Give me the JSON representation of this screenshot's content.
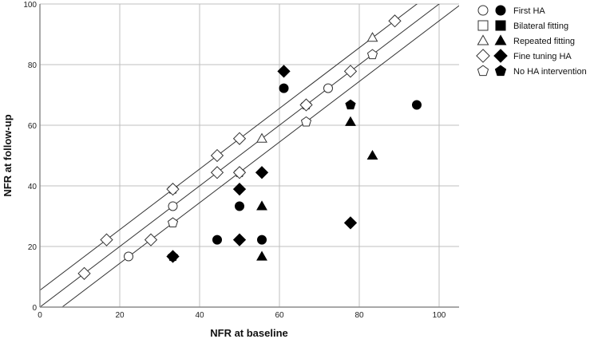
{
  "chart_data": {
    "type": "scatter",
    "title": "",
    "xlabel": "NFR at baseline",
    "ylabel": "NFR at follow-up",
    "xlim": [
      0,
      105
    ],
    "ylim": [
      0,
      100
    ],
    "xticks": [
      0,
      20,
      40,
      60,
      80,
      100
    ],
    "yticks": [
      0,
      20,
      40,
      60,
      80,
      100
    ],
    "grid": true,
    "legend_position": "top-right-outside",
    "reference_lines": [
      {
        "name": "upper-bound",
        "slope": 1,
        "intercept": 5.56
      },
      {
        "name": "identity",
        "slope": 1,
        "intercept": 0
      },
      {
        "name": "lower-bound",
        "slope": 1,
        "intercept": -5.56
      }
    ],
    "series": [
      {
        "name": "First HA",
        "marker": "circle",
        "filled": false,
        "points": [
          [
            22.2,
            16.7
          ],
          [
            33.3,
            33.3
          ],
          [
            72.2,
            72.2
          ]
        ]
      },
      {
        "name": "First HA",
        "marker": "circle",
        "filled": true,
        "points": [
          [
            44.4,
            22.2
          ],
          [
            50,
            33.3
          ],
          [
            55.6,
            22.2
          ],
          [
            61.1,
            72.2
          ],
          [
            94.4,
            66.7
          ]
        ]
      },
      {
        "name": "Bilateral fitting",
        "marker": "square",
        "filled": false,
        "points": []
      },
      {
        "name": "Bilateral fitting",
        "marker": "square",
        "filled": true,
        "points": []
      },
      {
        "name": "Repeated fitting",
        "marker": "triangle",
        "filled": false,
        "points": [
          [
            55.6,
            55.6
          ],
          [
            83.3,
            88.9
          ]
        ]
      },
      {
        "name": "Repeated fitting",
        "marker": "triangle",
        "filled": true,
        "points": [
          [
            55.6,
            33.3
          ],
          [
            55.6,
            16.7
          ],
          [
            77.8,
            61.1
          ],
          [
            83.3,
            50
          ]
        ]
      },
      {
        "name": "Fine tuning HA",
        "marker": "diamond",
        "filled": false,
        "points": [
          [
            11.1,
            11.1
          ],
          [
            16.7,
            22.2
          ],
          [
            27.8,
            22.2
          ],
          [
            33.3,
            38.9
          ],
          [
            44.4,
            44.4
          ],
          [
            44.4,
            50
          ],
          [
            50,
            55.6
          ],
          [
            50,
            44.4
          ],
          [
            66.7,
            66.7
          ],
          [
            77.8,
            77.8
          ],
          [
            88.9,
            94.4
          ]
        ]
      },
      {
        "name": "Fine tuning HA",
        "marker": "diamond",
        "filled": true,
        "points": [
          [
            33.3,
            16.7
          ],
          [
            50,
            38.9
          ],
          [
            50,
            22.2
          ],
          [
            55.6,
            44.4
          ],
          [
            61.1,
            77.8
          ],
          [
            77.8,
            27.8
          ]
        ]
      },
      {
        "name": "No HA intervention",
        "marker": "pentagon",
        "filled": false,
        "points": [
          [
            33.3,
            27.8
          ],
          [
            33.3,
            38.9
          ],
          [
            50,
            44.4
          ],
          [
            66.7,
            66.7
          ],
          [
            66.7,
            61.1
          ],
          [
            83.3,
            83.3
          ]
        ]
      },
      {
        "name": "No HA intervention",
        "marker": "pentagon",
        "filled": true,
        "points": [
          [
            77.8,
            66.7
          ],
          [
            33.3,
            16.7
          ]
        ]
      }
    ],
    "legend": [
      {
        "label": "First HA",
        "marker": "circle"
      },
      {
        "label": "Bilateral fitting",
        "marker": "square"
      },
      {
        "label": "Repeated fitting",
        "marker": "triangle"
      },
      {
        "label": "Fine tuning HA",
        "marker": "diamond"
      },
      {
        "label": "No HA intervention",
        "marker": "pentagon"
      }
    ]
  },
  "colors": {
    "grid": "#bfbfbf",
    "axis": "#8c8c8c",
    "line": "#333333",
    "marker_stroke": "#333333",
    "marker_fill": "#000000",
    "open_fill": "#ffffff"
  }
}
